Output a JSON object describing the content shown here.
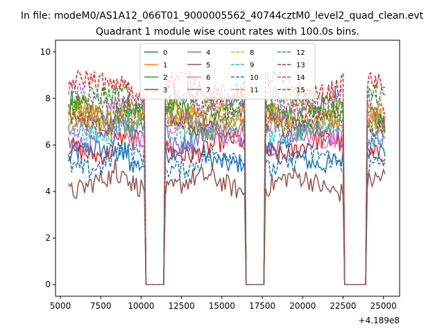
{
  "chart_data": {
    "type": "line",
    "suptitle": "In file: modeM0/AS1A12_066T01_9000005562_40744cztM0_level2_quad_clean.evt",
    "title": "Quadrant 1 module wise count rates with 100.0s bins.",
    "xlabel": "",
    "ylabel": "",
    "x_offset_label": "+4.189e8",
    "xlim": [
      4700,
      26000
    ],
    "ylim": [
      -0.5,
      10.5
    ],
    "xticks": [
      5000,
      7500,
      10000,
      12500,
      15000,
      17500,
      20000,
      22500,
      25000
    ],
    "xtick_labels": [
      "5000",
      "7500",
      "10000",
      "12500",
      "15000",
      "17500",
      "20000",
      "22500",
      "25000"
    ],
    "yticks": [
      0,
      2,
      4,
      6,
      8,
      10
    ],
    "ytick_labels": [
      "0",
      "2",
      "4",
      "6",
      "8",
      "10"
    ],
    "grid": false,
    "legend_position": "top-center",
    "time_segments": [
      [
        5500,
        10200
      ],
      [
        11500,
        16400
      ],
      [
        17700,
        22500
      ],
      [
        24000,
        25100
      ]
    ],
    "gap_level": 0,
    "series": [
      {
        "name": "0",
        "color": "#1f77b4",
        "dash": "solid",
        "mean_rate": 5.5
      },
      {
        "name": "1",
        "color": "#ff7f0e",
        "dash": "solid",
        "mean_rate": 7.3
      },
      {
        "name": "2",
        "color": "#2ca02c",
        "dash": "solid",
        "mean_rate": 7.6
      },
      {
        "name": "3",
        "color": "#d62728",
        "dash": "solid",
        "mean_rate": 5.9
      },
      {
        "name": "4",
        "color": "#9467bd",
        "dash": "solid",
        "mean_rate": 6.3
      },
      {
        "name": "5",
        "color": "#8c564b",
        "dash": "solid",
        "mean_rate": 4.3
      },
      {
        "name": "6",
        "color": "#e377c2",
        "dash": "solid",
        "mean_rate": 6.6
      },
      {
        "name": "7",
        "color": "#7f7f7f",
        "dash": "solid",
        "mean_rate": 6.9
      },
      {
        "name": "8",
        "color": "#bcbd22",
        "dash": "dashed",
        "mean_rate": 7.0
      },
      {
        "name": "9",
        "color": "#17becf",
        "dash": "dashed",
        "mean_rate": 6.7
      },
      {
        "name": "10",
        "color": "#1f77b4",
        "dash": "dashed",
        "mean_rate": 5.3
      },
      {
        "name": "11",
        "color": "#ff7f0e",
        "dash": "dashed",
        "mean_rate": 7.4
      },
      {
        "name": "12",
        "color": "#2ca02c",
        "dash": "dashed",
        "mean_rate": 7.8
      },
      {
        "name": "13",
        "color": "#d62728",
        "dash": "dashed",
        "mean_rate": 8.5
      },
      {
        "name": "14",
        "color": "#9467bd",
        "dash": "dashed",
        "mean_rate": 7.9
      },
      {
        "name": "15",
        "color": "#8c564b",
        "dash": "dashed",
        "mean_rate": 7.1
      }
    ]
  }
}
